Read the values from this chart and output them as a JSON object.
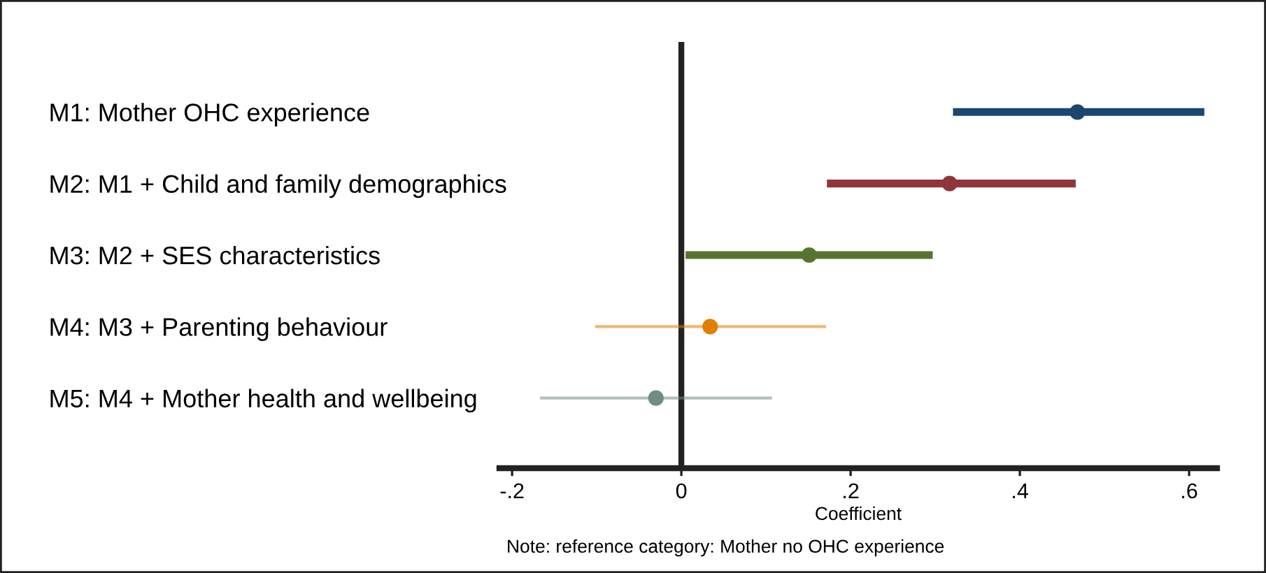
{
  "chart_data": {
    "type": "scatter",
    "orientation": "horizontal",
    "categories": [
      "M1: Mother OHC experience",
      "M2: M1 + Child and family demographics",
      "M3: M2 + SES characteristics",
      "M4: M3 + Parenting behaviour",
      "M5: M4 + Mother health and wellbeing"
    ],
    "values": [
      0.468,
      0.317,
      0.151,
      0.034,
      -0.03
    ],
    "errors": [
      [
        0.321,
        0.618
      ],
      [
        0.172,
        0.466
      ],
      [
        0.005,
        0.297
      ],
      [
        -0.102,
        0.171
      ],
      [
        -0.167,
        0.107
      ]
    ],
    "colors": [
      "#1a476f",
      "#90353b",
      "#55752f",
      "#e37e00",
      "#6e8e84"
    ],
    "marker": "circle",
    "xlabel": "Coefficient",
    "xlim": [
      -0.215,
      0.633
    ],
    "xticks": [
      {
        "value": -0.2,
        "label": "-.2"
      },
      0,
      {
        "value": 0.2,
        "label": ".2"
      },
      {
        "value": 0.4,
        "label": ".4"
      },
      {
        "value": 0.6,
        "label": ".6"
      }
    ],
    "ref_lines": [
      {
        "axis": "x",
        "value": 0,
        "color": "#222222"
      }
    ],
    "annotations": [
      "Note: reference category: Mother no OHC experience"
    ],
    "grid": false,
    "legend": false
  }
}
